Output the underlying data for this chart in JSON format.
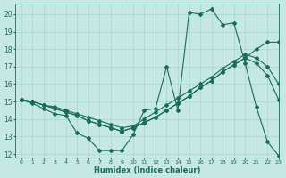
{
  "xlabel": "Humidex (Indice chaleur)",
  "bg_color": "#c5e8e3",
  "grid_color": "#a8d4cc",
  "line_color": "#1a6b5a",
  "xlim": [
    -0.5,
    23
  ],
  "ylim": [
    11.8,
    20.6
  ],
  "xticks": [
    0,
    1,
    2,
    3,
    4,
    5,
    6,
    7,
    8,
    9,
    10,
    11,
    12,
    13,
    14,
    15,
    16,
    17,
    18,
    19,
    20,
    21,
    22,
    23
  ],
  "yticks": [
    12,
    13,
    14,
    15,
    16,
    17,
    18,
    19,
    20
  ],
  "x": [
    0,
    1,
    2,
    3,
    4,
    5,
    6,
    7,
    8,
    9,
    10,
    11,
    12,
    13,
    14,
    15,
    16,
    17,
    18,
    19,
    20,
    21,
    22,
    23
  ],
  "series": [
    [
      15.1,
      14.9,
      14.6,
      14.3,
      14.2,
      13.2,
      12.9,
      12.2,
      12.2,
      12.2,
      13.1,
      14.5,
      14.6,
      17.0,
      14.5,
      20.1,
      20.0,
      20.3,
      19.4,
      19.5,
      17.2,
      14.7,
      12.7,
      11.9
    ],
    [
      15.1,
      15.0,
      14.8,
      14.6,
      14.4,
      14.2,
      13.9,
      13.7,
      13.5,
      13.3,
      13.5,
      13.8,
      14.1,
      14.5,
      14.9,
      15.3,
      15.8,
      16.2,
      16.7,
      17.1,
      17.5,
      17.2,
      16.5,
      15.1
    ],
    [
      15.1,
      15.0,
      14.8,
      14.6,
      14.4,
      14.2,
      13.9,
      13.7,
      13.5,
      13.3,
      13.5,
      13.8,
      14.1,
      14.5,
      14.9,
      15.3,
      15.8,
      16.2,
      16.7,
      17.1,
      17.5,
      18.0,
      18.4,
      18.4
    ],
    [
      15.1,
      15.0,
      14.8,
      14.7,
      14.5,
      14.3,
      14.1,
      13.9,
      13.7,
      13.5,
      13.6,
      14.0,
      14.4,
      14.8,
      15.2,
      15.6,
      16.0,
      16.4,
      16.9,
      17.3,
      17.7,
      17.5,
      17.0,
      16.0
    ]
  ]
}
